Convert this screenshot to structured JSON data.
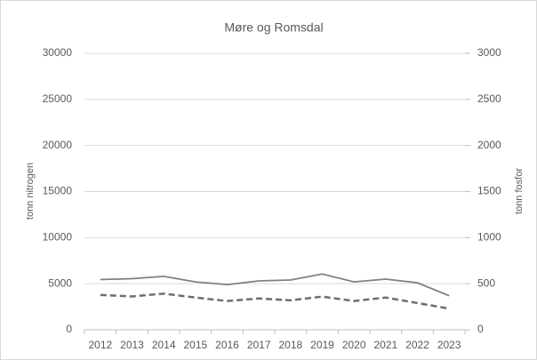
{
  "chart_data": {
    "type": "line",
    "title": "Møre og Romsdal",
    "y_label": "tonn nitrogen",
    "y2_label": "tonn fosfor",
    "categories": [
      "2012",
      "2013",
      "2014",
      "2015",
      "2016",
      "2017",
      "2018",
      "2019",
      "2020",
      "2021",
      "2022",
      "2023"
    ],
    "series": [
      {
        "color": "#808080",
        "dash": false,
        "values": [
          5450,
          5550,
          5800,
          5200,
          4900,
          5300,
          5400,
          6050,
          5200,
          5500,
          5100,
          3700
        ]
      },
      {
        "color": "#6e6e6e",
        "dash": true,
        "axis": "y2",
        "values": [
          378,
          362,
          392,
          350,
          312,
          340,
          320,
          360,
          312,
          350,
          290,
          230
        ]
      }
    ],
    "ylim": [
      0,
      30000
    ],
    "yticks": [
      0,
      5000,
      10000,
      15000,
      20000,
      25000,
      30000
    ],
    "y2lim": [
      0,
      3000
    ],
    "y2ticks": [
      0,
      500,
      1000,
      1500,
      2000,
      2500,
      3000
    ],
    "grid": true
  }
}
